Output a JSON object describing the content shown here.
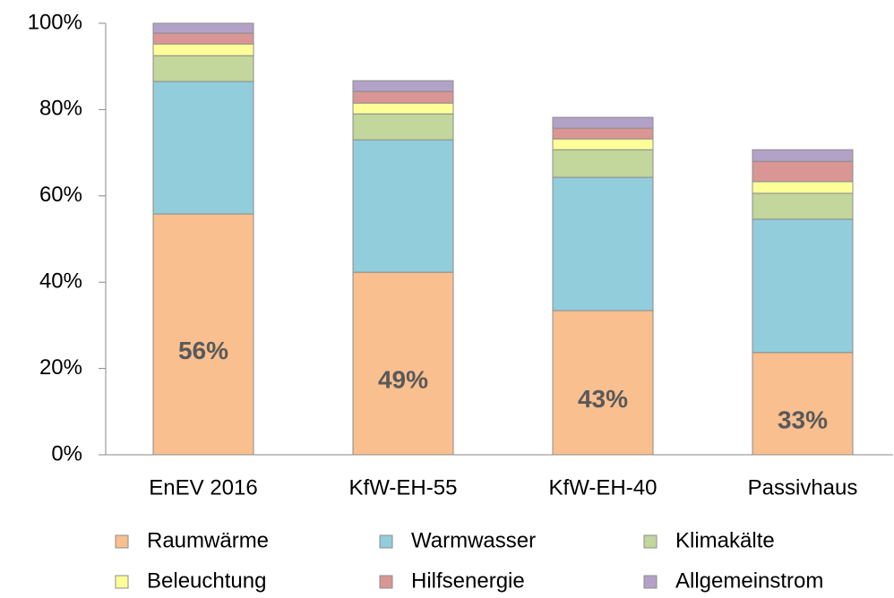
{
  "chart_data": {
    "type": "stacked_bar",
    "categories": [
      "EnEV 2016",
      "KfW-EH-55",
      "KfW-EH-40",
      "Passivhaus"
    ],
    "series": [
      {
        "name": "Raumwärme",
        "color": "#f9bf8f",
        "values": [
          55.8,
          42.3,
          33.4,
          23.7
        ]
      },
      {
        "name": "Warmwasser",
        "color": "#92cddc",
        "values": [
          30.7,
          30.7,
          30.9,
          30.9
        ]
      },
      {
        "name": "Klimakälte",
        "color": "#c3d69b",
        "values": [
          6.0,
          6.0,
          6.4,
          6.0
        ]
      },
      {
        "name": "Beleuchtung",
        "color": "#ffff99",
        "values": [
          2.7,
          2.5,
          2.5,
          2.7
        ]
      },
      {
        "name": "Hilfsenergie",
        "color": "#d99694",
        "values": [
          2.5,
          2.7,
          2.5,
          4.7
        ]
      },
      {
        "name": "Allgemeinstrom",
        "color": "#b3a2c7",
        "values": [
          2.3,
          2.5,
          2.5,
          2.7
        ]
      }
    ],
    "annotations": [
      "56%",
      "49%",
      "43%",
      "33%"
    ],
    "ylim": [
      0,
      100
    ],
    "yticks": [
      {
        "value": 0,
        "label": "0%"
      },
      {
        "value": 20,
        "label": "20%"
      },
      {
        "value": 40,
        "label": "40%"
      },
      {
        "value": 60,
        "label": "60%"
      },
      {
        "value": 80,
        "label": "80%"
      },
      {
        "value": 100,
        "label": "100%"
      }
    ],
    "grid": false
  }
}
